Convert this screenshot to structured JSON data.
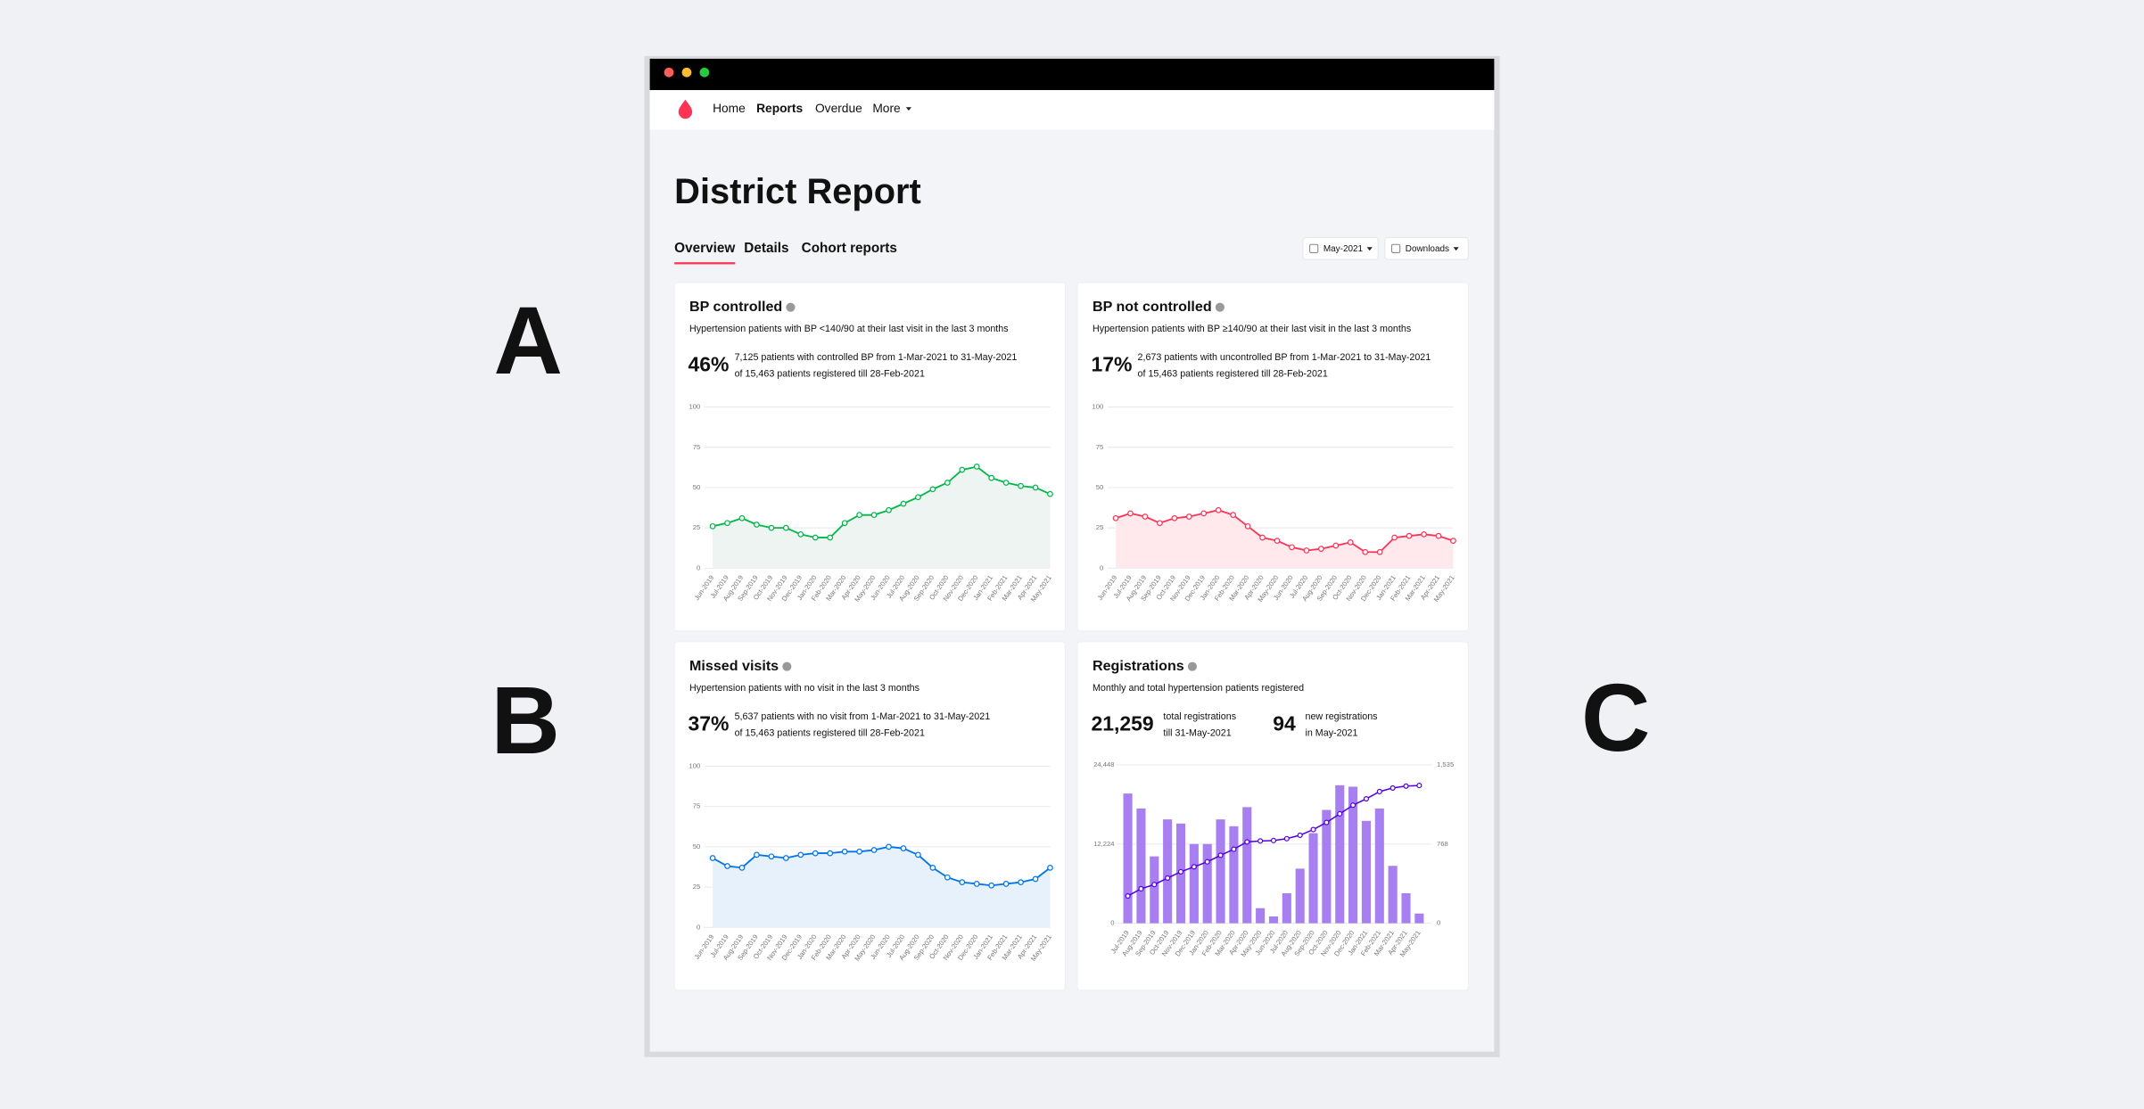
{
  "labels": [
    "A",
    "B",
    "C"
  ],
  "nav": {
    "items": [
      "Home",
      "Reports",
      "Overdue",
      "More"
    ]
  },
  "title": "District Report",
  "tabs": [
    "Overview",
    "Details",
    "Cohort reports"
  ],
  "controls": [
    "May-2021",
    "Downloads"
  ],
  "cards": [
    {
      "title": "BP controlled",
      "subtitle": "Hypertension patients with BP <140/90 at their last visit in the last 3 months",
      "stat": "46%",
      "stat_color": "#00a33f",
      "stat_text": "7,125 patients with controlled BP from 1-Mar-2021 to 31-May-2021",
      "stat_note": "of 15,463 patients registered till 28-Feb-2021",
      "chart": {
        "type": "line",
        "color": "#00b849",
        "fill": "#eef4f1",
        "categories": [
          "Jun-2019",
          "Jul-2019",
          "Aug-2019",
          "Sep-2019",
          "Oct-2019",
          "Nov-2019",
          "Dec-2019",
          "Jan-2020",
          "Feb-2020",
          "Mar-2020",
          "Apr-2020",
          "May-2020",
          "Jun-2020",
          "Jul-2020",
          "Aug-2020",
          "Sep-2020",
          "Oct-2020",
          "Nov-2020",
          "Dec-2020",
          "Jan-2021",
          "Feb-2021",
          "Mar-2021",
          "Apr-2021",
          "May-2021"
        ],
        "values": [
          26,
          28,
          31,
          27,
          25,
          25,
          21,
          19,
          19,
          28,
          33,
          33,
          36,
          40,
          44,
          49,
          53,
          61,
          63,
          56,
          53,
          51,
          50,
          46
        ],
        "ylim": [
          0,
          100
        ],
        "yticks": [
          0,
          25,
          50,
          75,
          100
        ],
        "grid": true
      }
    },
    {
      "title": "BP not controlled",
      "subtitle": "Hypertension patients with BP ≥140/90 at their last visit in the last 3 months",
      "stat": "17%",
      "stat_color": "#ff3355",
      "stat_text": "2,673 patients with uncontrolled BP from 1-Mar-2021 to 31-May-2021",
      "stat_note": "of 15,463 patients registered till 28-Feb-2021",
      "chart": {
        "type": "line",
        "color": "#ff3355",
        "fill": "#ffe9ed",
        "categories": [
          "Jun-2019",
          "Jul-2019",
          "Aug-2019",
          "Sep-2019",
          "Oct-2019",
          "Nov-2019",
          "Dec-2019",
          "Jan-2020",
          "Feb-2020",
          "Mar-2020",
          "Apr-2020",
          "May-2020",
          "Jun-2020",
          "Jul-2020",
          "Aug-2020",
          "Sep-2020",
          "Oct-2020",
          "Nov-2020",
          "Dec-2020",
          "Jan-2021",
          "Feb-2021",
          "Mar-2021",
          "Apr-2021",
          "May-2021"
        ],
        "values": [
          31,
          34,
          32,
          28,
          31,
          32,
          34,
          36,
          33,
          26,
          19,
          17,
          13,
          11,
          12,
          14,
          16,
          10,
          10,
          19,
          20,
          21,
          20,
          17
        ],
        "ylim": [
          0,
          100
        ],
        "yticks": [
          0,
          25,
          50,
          75,
          100
        ],
        "grid": true
      }
    },
    {
      "title": "Missed visits",
      "subtitle": "Hypertension patients with no visit in the last 3 months",
      "stat": "37%",
      "stat_color": "#0075eb",
      "stat_text": "5,637 patients with no visit from 1-Mar-2021 to 31-May-2021",
      "stat_note": "of 15,463 patients registered till 28-Feb-2021",
      "chart": {
        "type": "line",
        "color": "#0075eb",
        "fill": "#e7f1fc",
        "categories": [
          "Jun-2019",
          "Jul-2019",
          "Aug-2019",
          "Sep-2019",
          "Oct-2019",
          "Nov-2019",
          "Dec-2019",
          "Jan-2020",
          "Feb-2020",
          "Mar-2020",
          "Apr-2020",
          "May-2020",
          "Jun-2020",
          "Jul-2020",
          "Aug-2020",
          "Sep-2020",
          "Oct-2020",
          "Nov-2020",
          "Dec-2020",
          "Jan-2021",
          "Feb-2021",
          "Mar-2021",
          "Apr-2021",
          "May-2021"
        ],
        "values": [
          43,
          38,
          37,
          45,
          44,
          43,
          45,
          46,
          46,
          47,
          47,
          48,
          50,
          49,
          45,
          37,
          31,
          28,
          27,
          26,
          27,
          28,
          30,
          37
        ],
        "ylim": [
          0,
          100
        ],
        "yticks": [
          0,
          25,
          50,
          75,
          100
        ],
        "grid": true
      }
    },
    {
      "title": "Registrations",
      "subtitle": "Monthly and total hypertension patients registered",
      "stats": [
        {
          "value": "21,259",
          "color": "#5300e0",
          "lines": [
            "total registrations",
            "till 31-May-2021"
          ]
        },
        {
          "value": "94",
          "color": "#a77ff0",
          "lines": [
            "new registrations",
            "in May-2021"
          ]
        }
      ],
      "chart": {
        "type": "combo",
        "categories": [
          "Jul-2019",
          "Aug-2019",
          "Sep-2019",
          "Oct-2019",
          "Nov-2019",
          "Dec-2019",
          "Jan-2020",
          "Feb-2020",
          "Mar-2020",
          "Apr-2020",
          "May-2020",
          "Jun-2020",
          "Jul-2020",
          "Aug-2020",
          "Sep-2020",
          "Oct-2020",
          "Nov-2020",
          "Dec-2020",
          "Jan-2021",
          "Feb-2021",
          "Mar-2021",
          "Apr-2021",
          "May-2021"
        ],
        "series": [
          {
            "type": "bar",
            "axis": "y2",
            "color": "#a77ff0",
            "values": [
              1257,
              1112,
              648,
              1006,
              966,
              768,
              768,
              1006,
              940,
              1125,
              146,
              66,
              291,
              529,
              873,
              1098,
              1337,
              1323,
              992,
              1112,
              556,
              291,
              94
            ]
          },
          {
            "type": "line",
            "color": "#5300e0",
            "values": [
              4212,
              5324,
              5972,
              6978,
              7944,
              8712,
              9480,
              10486,
              11426,
              12551,
              12697,
              12763,
              13054,
              13583,
              14456,
              15554,
              16891,
              18214,
              19206,
              20318,
              20874,
              21165,
              21259
            ]
          }
        ],
        "ylim": [
          0,
          24448
        ],
        "yticks": [
          0,
          {
            "value": 12224,
            "label": "12,224"
          },
          {
            "value": 24448,
            "label": "24,448"
          }
        ],
        "y2lim": [
          0,
          1535
        ],
        "y2ticks": [
          0,
          768,
          {
            "value": 1535,
            "label": "1,535"
          }
        ],
        "grid": true
      }
    }
  ]
}
